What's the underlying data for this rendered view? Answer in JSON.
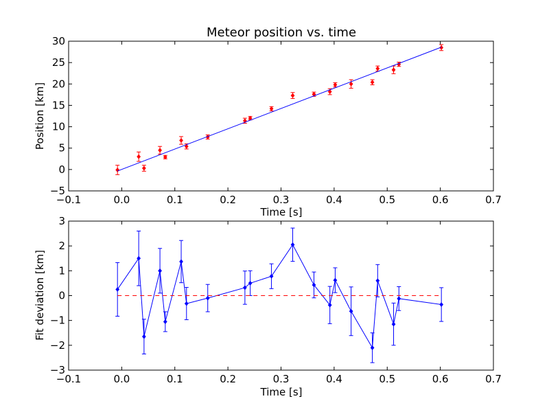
{
  "chart_data": [
    {
      "type": "scatter",
      "title": "Meteor position vs. time",
      "xlabel": "Time [s]",
      "ylabel": "Position [km]",
      "xlim": [
        -0.1,
        0.7
      ],
      "ylim": [
        -5,
        30
      ],
      "xticks": [
        -0.1,
        0.0,
        0.1,
        0.2,
        0.3,
        0.4,
        0.5,
        0.6,
        0.7
      ],
      "xtick_labels": [
        "−0.1",
        "0.0",
        "0.1",
        "0.2",
        "0.3",
        "0.4",
        "0.5",
        "0.6",
        "0.7"
      ],
      "yticks": [
        -5,
        0,
        5,
        10,
        15,
        20,
        25,
        30
      ],
      "ytick_labels": [
        "−5",
        "0",
        "5",
        "10",
        "15",
        "20",
        "25",
        "30"
      ],
      "grid": false,
      "series": [
        {
          "kind": "errorbar-points",
          "color": "#ff0000",
          "x": [
            -0.008,
            0.032,
            0.042,
            0.072,
            0.082,
            0.112,
            0.122,
            0.162,
            0.232,
            0.242,
            0.282,
            0.322,
            0.362,
            0.392,
            0.402,
            0.432,
            0.472,
            0.482,
            0.512,
            0.522,
            0.602
          ],
          "y": [
            -0.1,
            3.0,
            0.3,
            4.5,
            2.9,
            6.8,
            5.4,
            7.6,
            11.4,
            12.0,
            14.2,
            17.3,
            17.6,
            18.2,
            19.8,
            20.0,
            20.4,
            23.6,
            23.3,
            24.6,
            28.5
          ],
          "yerr": [
            1.1,
            1.1,
            0.7,
            0.9,
            0.4,
            0.9,
            0.6,
            0.5,
            0.6,
            0.4,
            0.5,
            0.7,
            0.5,
            0.7,
            0.5,
            1.0,
            0.6,
            0.6,
            0.9,
            0.5,
            0.7
          ]
        },
        {
          "kind": "fit-line",
          "color": "#0000ff",
          "x": [
            -0.008,
            0.602
          ],
          "y": [
            -0.35,
            28.6
          ]
        }
      ]
    },
    {
      "type": "line",
      "title": "",
      "xlabel": "Time [s]",
      "ylabel": "Fit deviation [km]",
      "xlim": [
        -0.1,
        0.7
      ],
      "ylim": [
        -3,
        3
      ],
      "xticks": [
        -0.1,
        0.0,
        0.1,
        0.2,
        0.3,
        0.4,
        0.5,
        0.6,
        0.7
      ],
      "xtick_labels": [
        "−0.1",
        "0.0",
        "0.1",
        "0.2",
        "0.3",
        "0.4",
        "0.5",
        "0.6",
        "0.7"
      ],
      "yticks": [
        -3,
        -2,
        -1,
        0,
        1,
        2,
        3
      ],
      "ytick_labels": [
        "−3",
        "−2",
        "−1",
        "0",
        "1",
        "2",
        "3"
      ],
      "grid": false,
      "series": [
        {
          "kind": "errorbar-line",
          "color": "#0000ff",
          "x": [
            -0.008,
            0.032,
            0.042,
            0.072,
            0.082,
            0.112,
            0.122,
            0.162,
            0.232,
            0.242,
            0.282,
            0.322,
            0.362,
            0.392,
            0.402,
            0.432,
            0.472,
            0.482,
            0.512,
            0.522,
            0.602
          ],
          "y": [
            0.25,
            1.5,
            -1.65,
            1.0,
            -1.05,
            1.37,
            -0.32,
            -0.1,
            0.32,
            0.5,
            0.78,
            2.05,
            0.43,
            -0.38,
            0.62,
            -0.63,
            -2.1,
            0.6,
            -1.15,
            -0.12,
            -0.36
          ],
          "yerr": [
            1.08,
            1.1,
            0.7,
            0.9,
            0.4,
            0.85,
            0.65,
            0.55,
            0.67,
            0.5,
            0.5,
            0.67,
            0.52,
            0.75,
            0.5,
            0.98,
            0.6,
            0.65,
            0.85,
            0.48,
            0.68
          ]
        },
        {
          "kind": "reference-line",
          "color": "#ff0000",
          "dashed": true,
          "x": [
            -0.008,
            0.602
          ],
          "y": [
            0,
            0
          ]
        }
      ]
    }
  ]
}
